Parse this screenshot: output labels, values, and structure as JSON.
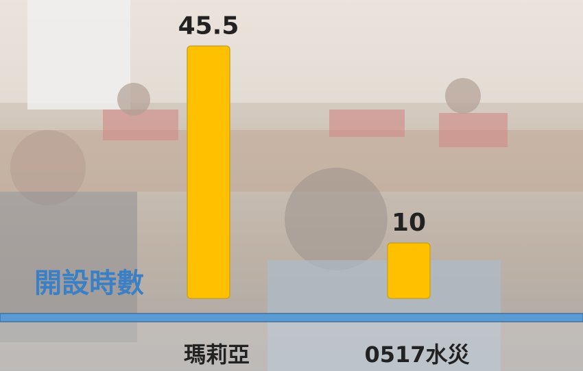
{
  "chart_data": {
    "type": "bar",
    "y_label": "開設時數",
    "categories": [
      "瑪莉亞",
      "0517水災"
    ],
    "values": [
      45.5,
      10
    ],
    "color": "#ffc000",
    "ylim": [
      0,
      48
    ]
  }
}
